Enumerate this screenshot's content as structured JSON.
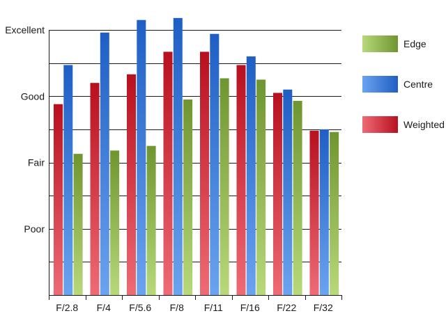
{
  "chart_data": {
    "type": "bar",
    "title": "",
    "xlabel": "",
    "ylabel": "",
    "categories": [
      "F/2.8",
      "F/4",
      "F/5.6",
      "F/8",
      "F/11",
      "F/16",
      "F/22",
      "F/32"
    ],
    "y_tick_labels": [
      "Excellent",
      "Good",
      "Fair",
      "Poor"
    ],
    "y_tick_values": [
      4,
      3,
      2,
      1
    ],
    "ylim": [
      0,
      4
    ],
    "grid": true,
    "legend_position": "right",
    "series": [
      {
        "name": "Weighted",
        "color": "#cc1f2e",
        "values": [
          2.88,
          3.2,
          3.33,
          3.67,
          3.67,
          3.47,
          3.05,
          2.48
        ]
      },
      {
        "name": "Centre",
        "color": "#2a6fd0",
        "values": [
          3.47,
          3.96,
          4.15,
          4.18,
          3.94,
          3.6,
          3.1,
          2.5
        ]
      },
      {
        "name": "Edge",
        "color": "#7ea23a",
        "values": [
          2.13,
          2.18,
          2.25,
          2.95,
          3.27,
          3.25,
          2.93,
          2.46
        ]
      }
    ],
    "legend_order": [
      "Edge",
      "Centre",
      "Weighted"
    ]
  }
}
